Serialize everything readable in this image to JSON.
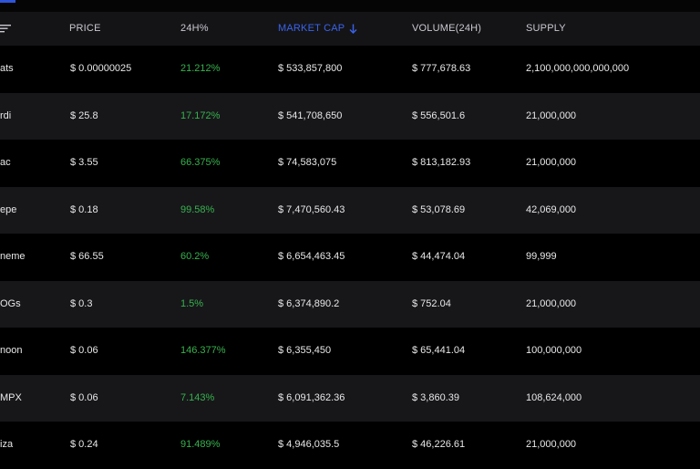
{
  "header": {
    "price": "PRICE",
    "change": "24H%",
    "market_cap": "MARKET CAP",
    "volume": "VOLUME(24H)",
    "supply": "SUPPLY"
  },
  "colors": {
    "accent": "#3a63ea",
    "positive": "#37b24d",
    "row_alt": "#17171a",
    "background": "#000000"
  },
  "rows": [
    {
      "name": "ats",
      "price": "$ 0.00000025",
      "change": "21.212%",
      "market_cap": "$ 533,857,800",
      "volume": "$ 777,678.63",
      "supply": "2,100,000,000,000,000"
    },
    {
      "name": "rdi",
      "price": "$ 25.8",
      "change": "17.172%",
      "market_cap": "$ 541,708,650",
      "volume": "$ 556,501.6",
      "supply": "21,000,000"
    },
    {
      "name": "ac",
      "price": "$ 3.55",
      "change": "66.375%",
      "market_cap": "$ 74,583,075",
      "volume": "$ 813,182.93",
      "supply": "21,000,000"
    },
    {
      "name": "epe",
      "price": "$ 0.18",
      "change": "99.58%",
      "market_cap": "$ 7,470,560.43",
      "volume": "$ 53,078.69",
      "supply": "42,069,000"
    },
    {
      "name": "neme",
      "price": "$ 66.55",
      "change": "60.2%",
      "market_cap": "$ 6,654,463.45",
      "volume": "$ 44,474.04",
      "supply": "99,999"
    },
    {
      "name": "OGs",
      "price": "$ 0.3",
      "change": "1.5%",
      "market_cap": "$ 6,374,890.2",
      "volume": "$ 752.04",
      "supply": "21,000,000"
    },
    {
      "name": "noon",
      "price": "$ 0.06",
      "change": "146.377%",
      "market_cap": "$ 6,355,450",
      "volume": "$ 65,441.04",
      "supply": "100,000,000"
    },
    {
      "name": "MPX",
      "price": "$ 0.06",
      "change": "7.143%",
      "market_cap": "$ 6,091,362.36",
      "volume": "$ 3,860.39",
      "supply": "108,624,000"
    },
    {
      "name": "iza",
      "price": "$ 0.24",
      "change": "91.489%",
      "market_cap": "$ 4,946,035.5",
      "volume": "$ 46,226.61",
      "supply": "21,000,000"
    }
  ]
}
